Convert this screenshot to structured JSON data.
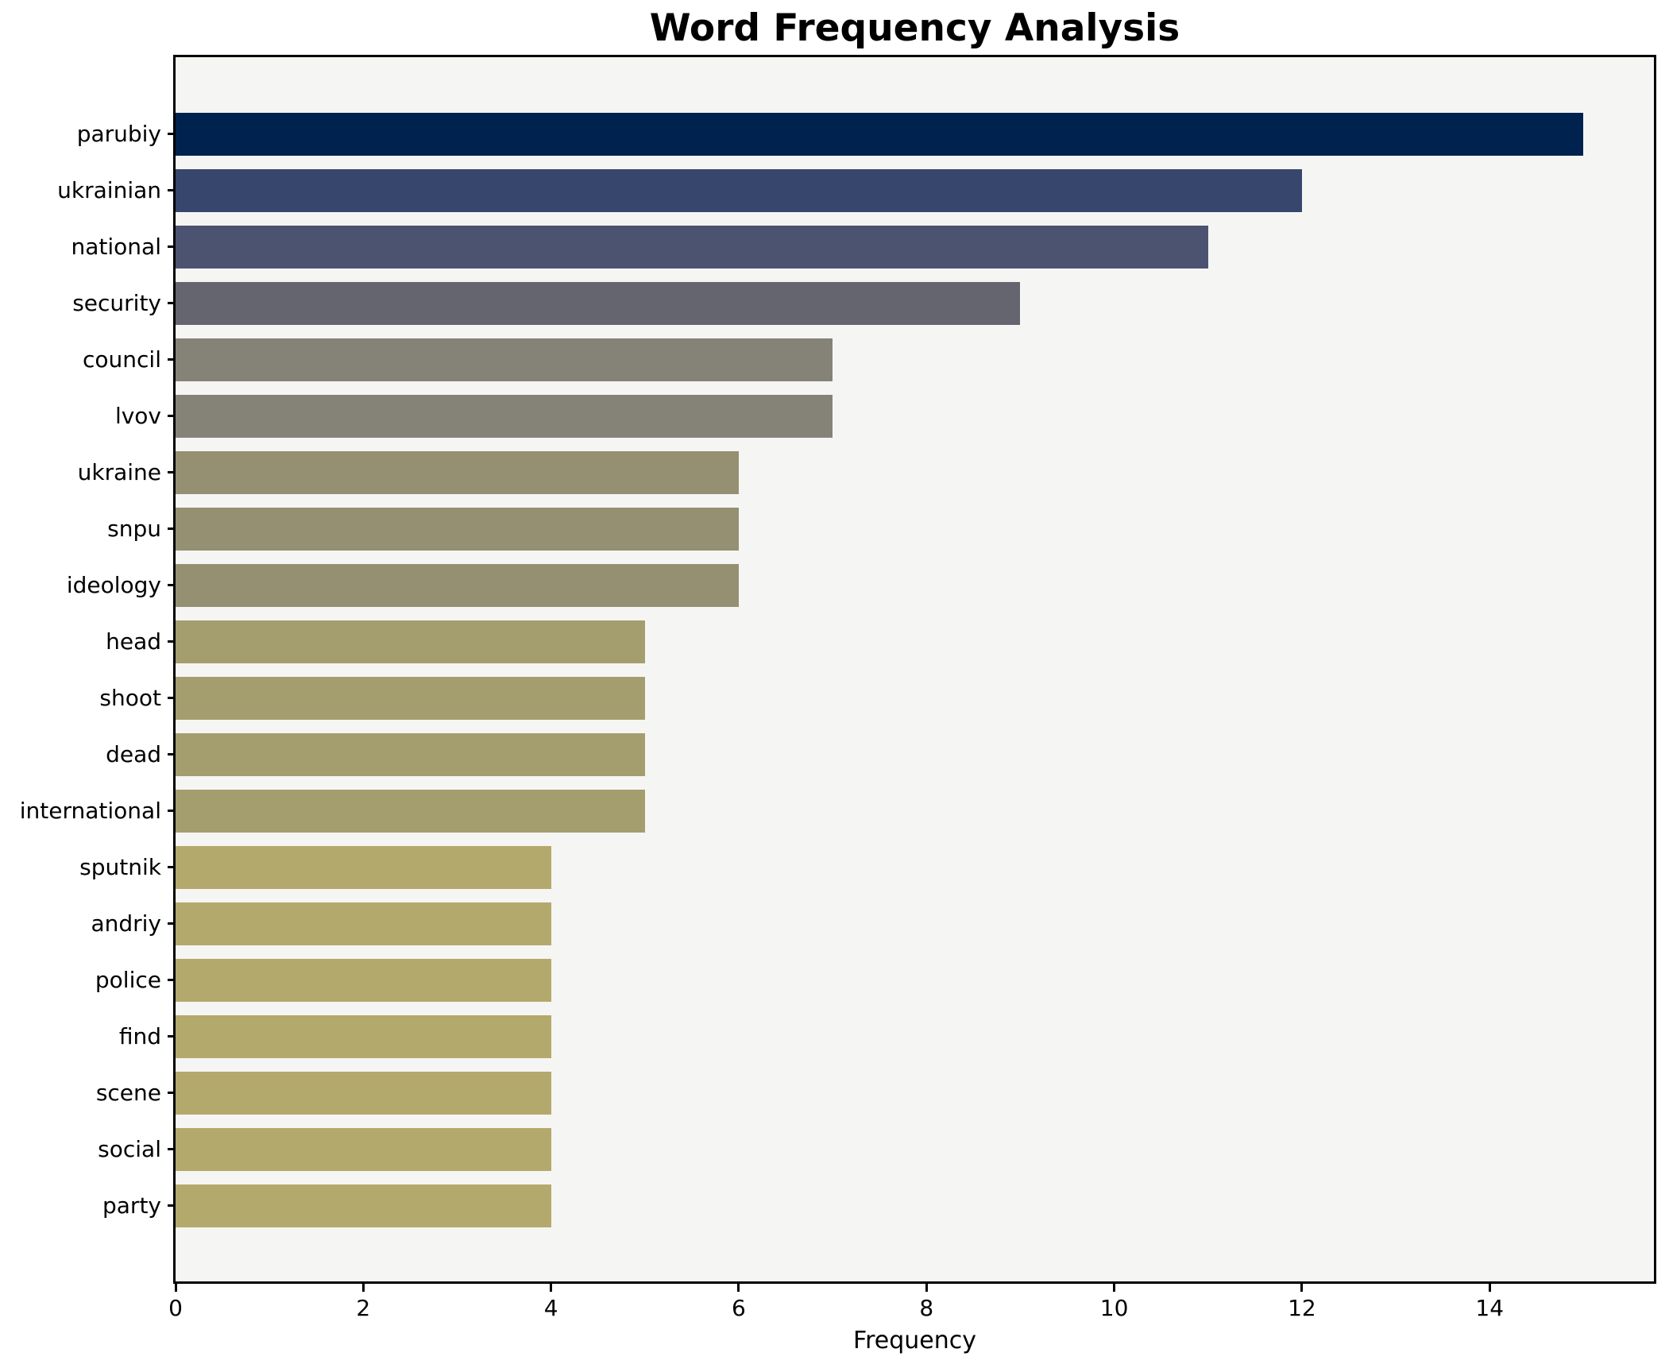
{
  "title": "Word Frequency Analysis",
  "xlabel": "Frequency",
  "chart_data": {
    "type": "bar",
    "orientation": "horizontal",
    "title": "Word Frequency Analysis",
    "xlabel": "Frequency",
    "ylabel": "",
    "categories": [
      "parubiy",
      "ukrainian",
      "national",
      "security",
      "council",
      "lvov",
      "ukraine",
      "snpu",
      "ideology",
      "head",
      "shoot",
      "dead",
      "international",
      "sputnik",
      "andriy",
      "police",
      "find",
      "scene",
      "social",
      "party"
    ],
    "values": [
      15,
      12,
      11,
      9,
      7,
      7,
      6,
      6,
      6,
      5,
      5,
      5,
      5,
      4,
      4,
      4,
      4,
      4,
      4,
      4
    ],
    "bar_colors": [
      "#00224e",
      "#36466d",
      "#4b5371",
      "#64656f",
      "#858278",
      "#858278",
      "#949071",
      "#949071",
      "#949071",
      "#a49d6d",
      "#a49d6d",
      "#a49d6d",
      "#a49d6d",
      "#b4a96c",
      "#b4a96c",
      "#b4a96c",
      "#b4a96c",
      "#b4a96c",
      "#b4a96c",
      "#b4a96c"
    ],
    "xlim": [
      0,
      15.75
    ],
    "xticks": [
      0,
      2,
      4,
      6,
      8,
      10,
      12,
      14
    ],
    "grid": false,
    "legend": null,
    "plot_bg": "#f5f5f4",
    "figure_bg": "#ffffff",
    "spine_color": "#000000"
  }
}
